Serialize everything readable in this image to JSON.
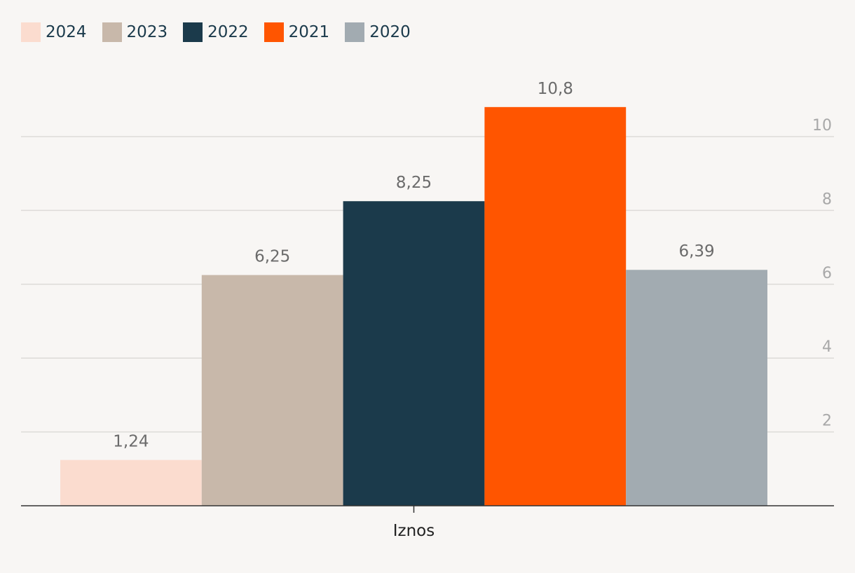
{
  "chart_data": {
    "type": "bar",
    "categories": [
      "Iznos"
    ],
    "series": [
      {
        "name": "2024",
        "values": [
          1.24
        ],
        "label": "1,24",
        "color": "#fbdccf"
      },
      {
        "name": "2023",
        "values": [
          6.25
        ],
        "label": "6,25",
        "color": "#c8b8aa"
      },
      {
        "name": "2022",
        "values": [
          8.25
        ],
        "label": "8,25",
        "color": "#1b3a4b"
      },
      {
        "name": "2021",
        "values": [
          10.8
        ],
        "label": "10,8",
        "color": "#ff5500"
      },
      {
        "name": "2020",
        "values": [
          6.39
        ],
        "label": "6,39",
        "color": "#a2abb1"
      }
    ],
    "y_ticks": [
      2,
      4,
      6,
      8,
      10
    ],
    "ylim": [
      0,
      12
    ],
    "y_axis_side": "right",
    "grid": true,
    "legend_position": "top-left"
  }
}
